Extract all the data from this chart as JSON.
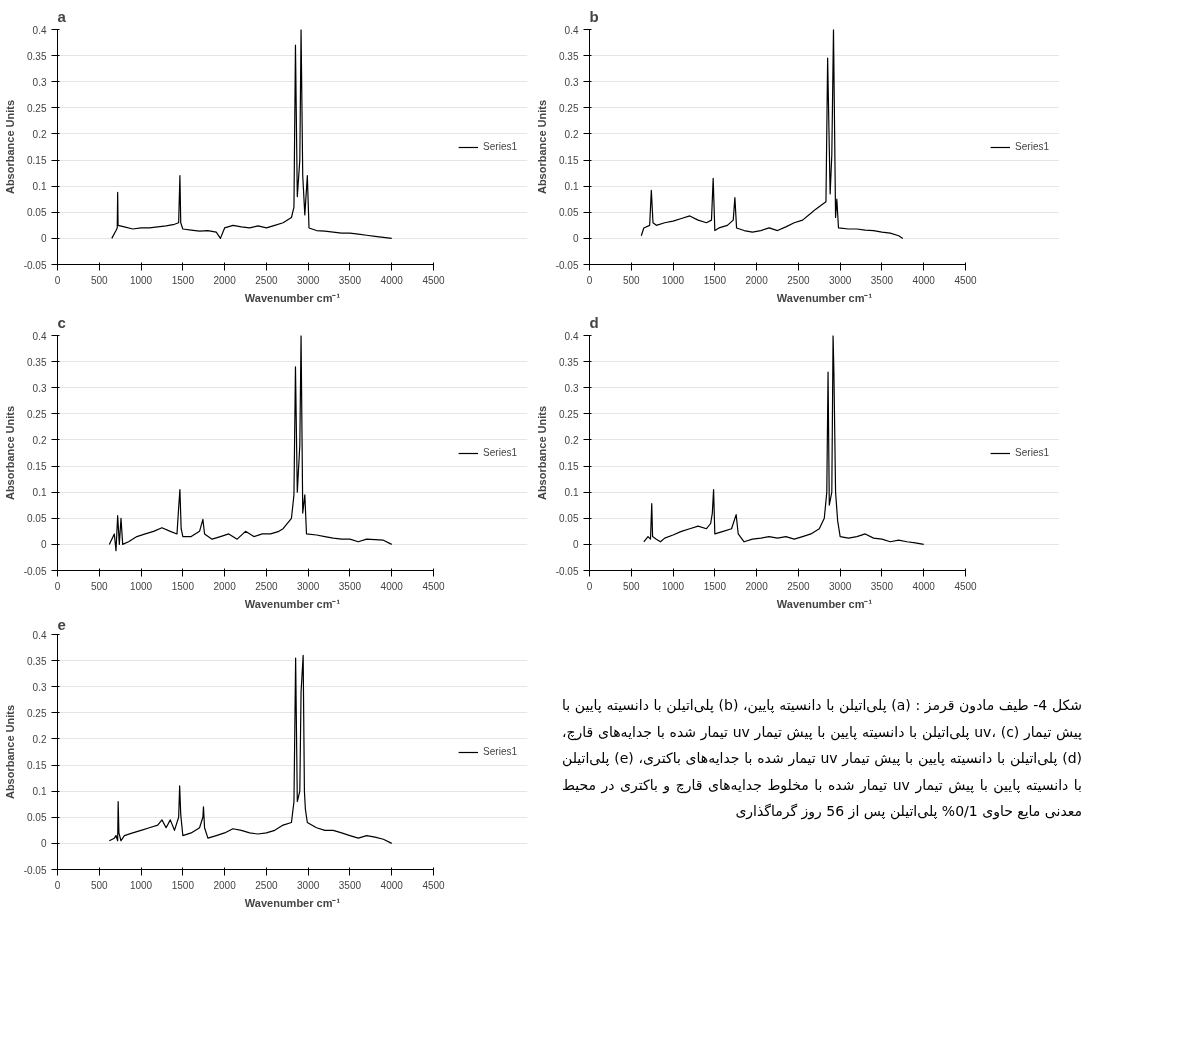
{
  "chart_data": [
    {
      "type": "line",
      "title": "a",
      "xlabel": "Wavenumber cm⁻¹",
      "ylabel": "Absorbance Units",
      "legend": "right",
      "grid": "y",
      "marker": "none",
      "line_style": "solid",
      "xlim": [
        0,
        4500
      ],
      "xticks": [
        0,
        500,
        1000,
        1500,
        2000,
        2500,
        3000,
        3500,
        4000,
        4500
      ],
      "ylim": [
        -0.05,
        0.4
      ],
      "yticks": [
        -0.05,
        0,
        0.05,
        0.1,
        0.15,
        0.2,
        0.25,
        0.3,
        0.35,
        0.4
      ],
      "series": [
        {
          "name": "Series1",
          "color": "#000000",
          "x": [
            650,
            700,
            715,
            720,
            725,
            800,
            900,
            1000,
            1100,
            1200,
            1300,
            1400,
            1450,
            1465,
            1475,
            1500,
            1600,
            1700,
            1800,
            1900,
            1950,
            2000,
            2100,
            2200,
            2300,
            2400,
            2500,
            2600,
            2700,
            2800,
            2830,
            2848,
            2870,
            2900,
            2915,
            2935,
            2960,
            2990,
            3010,
            3100,
            3200,
            3300,
            3400,
            3500,
            3600,
            3700,
            3800,
            3900,
            4000
          ],
          "values": [
            0.0,
            0.015,
            0.02,
            0.088,
            0.025,
            0.022,
            0.018,
            0.02,
            0.02,
            0.022,
            0.024,
            0.027,
            0.03,
            0.12,
            0.03,
            0.018,
            0.016,
            0.014,
            0.015,
            0.012,
            0.0,
            0.02,
            0.025,
            0.022,
            0.02,
            0.024,
            0.02,
            0.025,
            0.03,
            0.04,
            0.06,
            0.37,
            0.08,
            0.15,
            0.4,
            0.12,
            0.045,
            0.12,
            0.02,
            0.015,
            0.014,
            0.012,
            0.01,
            0.01,
            0.008,
            0.006,
            0.004,
            0.002,
            0.0
          ]
        }
      ]
    },
    {
      "type": "line",
      "title": "b",
      "xlabel": "Wavenumber cm⁻¹",
      "ylabel": "Absorbance Units",
      "legend": "right",
      "grid": "y",
      "marker": "none",
      "line_style": "solid",
      "xlim": [
        0,
        4500
      ],
      "xticks": [
        0,
        500,
        1000,
        1500,
        2000,
        2500,
        3000,
        3500,
        4000,
        4500
      ],
      "ylim": [
        -0.05,
        0.4
      ],
      "yticks": [
        -0.05,
        0,
        0.05,
        0.1,
        0.15,
        0.2,
        0.25,
        0.3,
        0.35,
        0.4
      ],
      "series": [
        {
          "name": "Series1",
          "color": "#000000",
          "x": [
            620,
            650,
            720,
            740,
            760,
            800,
            900,
            1000,
            1100,
            1200,
            1300,
            1400,
            1460,
            1480,
            1500,
            1550,
            1650,
            1720,
            1740,
            1760,
            1850,
            1950,
            2050,
            2150,
            2250,
            2350,
            2450,
            2550,
            2650,
            2700,
            2830,
            2850,
            2880,
            2900,
            2920,
            2945,
            2960,
            2980,
            3100,
            3200,
            3300,
            3400,
            3500,
            3600,
            3700,
            3750
          ],
          "values": [
            0.005,
            0.02,
            0.025,
            0.092,
            0.03,
            0.025,
            0.03,
            0.033,
            0.038,
            0.043,
            0.035,
            0.03,
            0.035,
            0.115,
            0.015,
            0.02,
            0.025,
            0.035,
            0.078,
            0.02,
            0.015,
            0.012,
            0.015,
            0.02,
            0.015,
            0.022,
            0.03,
            0.035,
            0.048,
            0.055,
            0.07,
            0.345,
            0.085,
            0.16,
            0.4,
            0.04,
            0.075,
            0.02,
            0.018,
            0.018,
            0.016,
            0.015,
            0.012,
            0.01,
            0.005,
            0.0
          ]
        }
      ]
    },
    {
      "type": "line",
      "title": "c",
      "xlabel": "Wavenumber cm⁻¹",
      "ylabel": "Absorbance Units",
      "legend": "right",
      "grid": "y",
      "marker": "none",
      "line_style": "solid",
      "xlim": [
        0,
        4500
      ],
      "xticks": [
        0,
        500,
        1000,
        1500,
        2000,
        2500,
        3000,
        3500,
        4000,
        4500
      ],
      "ylim": [
        -0.05,
        0.4
      ],
      "yticks": [
        -0.05,
        0,
        0.05,
        0.1,
        0.15,
        0.2,
        0.25,
        0.3,
        0.35,
        0.4
      ],
      "series": [
        {
          "name": "Series1",
          "color": "#000000",
          "x": [
            620,
            680,
            700,
            720,
            740,
            760,
            780,
            850,
            950,
            1050,
            1150,
            1250,
            1350,
            1430,
            1450,
            1465,
            1480,
            1500,
            1600,
            1700,
            1740,
            1760,
            1850,
            1950,
            2050,
            2150,
            2250,
            2350,
            2450,
            2550,
            2650,
            2700,
            2800,
            2830,
            2848,
            2870,
            2900,
            2915,
            2935,
            2960,
            2980,
            3100,
            3200,
            3300,
            3400,
            3500,
            3600,
            3700,
            3900,
            4000
          ],
          "values": [
            0.0,
            0.02,
            -0.012,
            0.055,
            0.0,
            0.05,
            0.0,
            0.005,
            0.015,
            0.02,
            0.025,
            0.032,
            0.025,
            0.02,
            0.07,
            0.105,
            0.03,
            0.015,
            0.015,
            0.025,
            0.048,
            0.02,
            0.01,
            0.015,
            0.02,
            0.01,
            0.025,
            0.015,
            0.02,
            0.02,
            0.025,
            0.03,
            0.05,
            0.095,
            0.34,
            0.1,
            0.19,
            0.4,
            0.06,
            0.095,
            0.02,
            0.018,
            0.015,
            0.012,
            0.01,
            0.01,
            0.005,
            0.01,
            0.008,
            0.0
          ]
        }
      ]
    },
    {
      "type": "line",
      "title": "d",
      "xlabel": "Wavenumber cm⁻¹",
      "ylabel": "Absorbance Units",
      "legend": "right",
      "grid": "y",
      "marker": "none",
      "line_style": "solid",
      "xlim": [
        0,
        4500
      ],
      "xticks": [
        0,
        500,
        1000,
        1500,
        2000,
        2500,
        3000,
        3500,
        4000,
        4500
      ],
      "ylim": [
        -0.05,
        0.4
      ],
      "yticks": [
        -0.05,
        0,
        0.05,
        0.1,
        0.15,
        0.2,
        0.25,
        0.3,
        0.35,
        0.4
      ],
      "series": [
        {
          "name": "Series1",
          "color": "#000000",
          "x": [
            650,
            700,
            730,
            745,
            755,
            800,
            850,
            900,
            1000,
            1100,
            1200,
            1300,
            1400,
            1450,
            1470,
            1485,
            1500,
            1600,
            1700,
            1755,
            1780,
            1850,
            1950,
            2050,
            2150,
            2250,
            2350,
            2450,
            2550,
            2650,
            2750,
            2810,
            2840,
            2855,
            2870,
            2900,
            2915,
            2925,
            2945,
            2970,
            3000,
            3100,
            3200,
            3300,
            3400,
            3500,
            3600,
            3700,
            3800,
            3900,
            4000
          ],
          "values": [
            0.005,
            0.015,
            0.01,
            0.078,
            0.015,
            0.01,
            0.005,
            0.012,
            0.018,
            0.025,
            0.03,
            0.035,
            0.03,
            0.04,
            0.06,
            0.105,
            0.02,
            0.025,
            0.03,
            0.057,
            0.02,
            0.005,
            0.01,
            0.012,
            0.015,
            0.012,
            0.015,
            0.01,
            0.015,
            0.02,
            0.03,
            0.05,
            0.1,
            0.33,
            0.075,
            0.1,
            0.4,
            0.33,
            0.1,
            0.045,
            0.015,
            0.012,
            0.015,
            0.02,
            0.012,
            0.01,
            0.005,
            0.008,
            0.005,
            0.003,
            0.0
          ]
        }
      ]
    },
    {
      "type": "line",
      "title": "e",
      "xlabel": "Wavenumber cm⁻¹",
      "ylabel": "Absorbance Units",
      "legend": "right",
      "grid": "y",
      "marker": "none",
      "line_style": "solid",
      "xlim": [
        0,
        4500
      ],
      "xticks": [
        0,
        500,
        1000,
        1500,
        2000,
        2500,
        3000,
        3500,
        4000,
        4500
      ],
      "ylim": [
        -0.05,
        0.4
      ],
      "yticks": [
        -0.05,
        0,
        0.05,
        0.1,
        0.15,
        0.2,
        0.25,
        0.3,
        0.35,
        0.4
      ],
      "series": [
        {
          "name": "Series1",
          "color": "#000000",
          "x": [
            620,
            680,
            700,
            720,
            726,
            735,
            760,
            800,
            900,
            1000,
            1100,
            1200,
            1250,
            1300,
            1350,
            1400,
            1450,
            1462,
            1475,
            1500,
            1600,
            1700,
            1740,
            1747,
            1760,
            1800,
            1900,
            2000,
            2100,
            2200,
            2300,
            2400,
            2500,
            2600,
            2700,
            2800,
            2830,
            2850,
            2870,
            2900,
            2915,
            2940,
            2955,
            2967,
            2990,
            3100,
            3200,
            3300,
            3400,
            3500,
            3600,
            3700,
            3800,
            3900,
            4000
          ],
          "values": [
            0.005,
            0.01,
            0.015,
            0.005,
            0.08,
            0.02,
            0.005,
            0.015,
            0.02,
            0.025,
            0.03,
            0.035,
            0.045,
            0.03,
            0.045,
            0.025,
            0.05,
            0.11,
            0.055,
            0.015,
            0.02,
            0.03,
            0.05,
            0.07,
            0.03,
            0.01,
            0.015,
            0.02,
            0.028,
            0.025,
            0.02,
            0.018,
            0.02,
            0.025,
            0.035,
            0.04,
            0.08,
            0.355,
            0.08,
            0.1,
            0.29,
            0.36,
            0.1,
            0.065,
            0.04,
            0.03,
            0.025,
            0.025,
            0.02,
            0.015,
            0.01,
            0.015,
            0.012,
            0.008,
            0.0
          ]
        }
      ]
    },
    {
      "type": "other",
      "annotations": [
        "شکل 4- طیف مادون قرمز : (a) پلی‌اتیلن با دانسیته پایین، (b) پلی‌اتیلن با دانسیته پایین با پیش تیمار uv، (c) پلی‌اتیلن با دانسیته پایین با پیش تیمار uv تیمار شده با جدایه‌های قارچ، (d) پلی‌اتیلن با دانسیته پایین با پیش تیمار uv تیمار شده با جدایه‌های باکتری، (e) پلی‌اتیلن با دانسیته پایین با پیش تیمار uv تیمار شده با مخلوط جدایه‌های قارچ و باکتری در محیط معدنی مایع حاوی 0/1% پلی‌اتیلن پس از 56 روز گرماگذاری"
      ]
    }
  ]
}
